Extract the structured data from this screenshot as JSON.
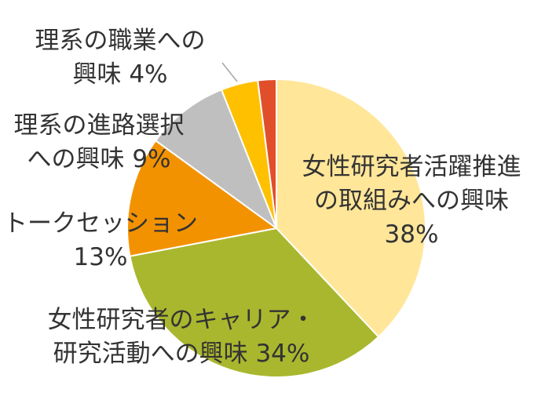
{
  "chart_data": {
    "type": "pie",
    "slices": [
      {
        "value": 38,
        "color": "#FFE699",
        "label_lines": [
          "女性研究者活躍推進",
          "の取組みへの興味",
          "38%"
        ]
      },
      {
        "value": 34,
        "color": "#A9B72E",
        "label_lines": [
          "女性研究者のキャリア・",
          "研究活動への興味 34%"
        ]
      },
      {
        "value": 13,
        "color": "#F39200",
        "label_lines": [
          "トークセッション",
          "13%"
        ]
      },
      {
        "value": 9,
        "color": "#BFBFBF",
        "label_lines": [
          "理系の進路選択",
          "への興味 9%"
        ]
      },
      {
        "value": 4,
        "color": "#FFC000",
        "label_lines": [
          "理系の職業への",
          "興味 4%"
        ]
      },
      {
        "value": 2,
        "color": "#E04F2A",
        "label_lines": []
      }
    ]
  }
}
